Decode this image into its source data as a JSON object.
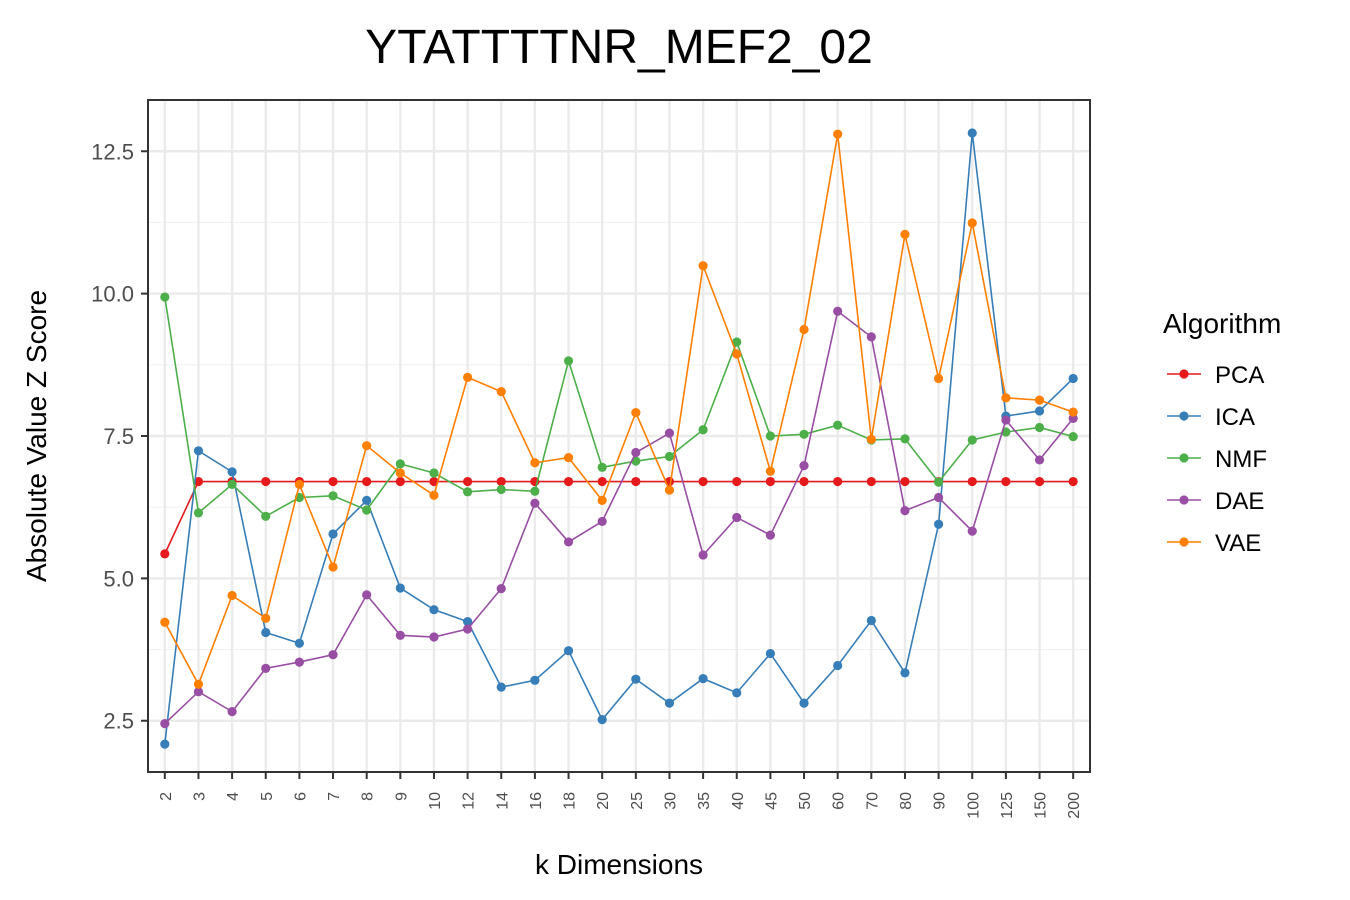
{
  "chart_data": {
    "type": "line",
    "title": "YTATTTTNR_MEF2_02",
    "xlabel": "k Dimensions",
    "ylabel": "Absolute Value Z Score",
    "categories": [
      "2",
      "3",
      "4",
      "5",
      "6",
      "7",
      "8",
      "9",
      "10",
      "12",
      "14",
      "16",
      "18",
      "20",
      "25",
      "30",
      "35",
      "40",
      "45",
      "50",
      "60",
      "70",
      "80",
      "90",
      "100",
      "125",
      "150",
      "200"
    ],
    "ylim": [
      1.6,
      13.4
    ],
    "yticks": [
      2.5,
      5.0,
      7.5,
      10.0,
      12.5
    ],
    "ytick_labels": [
      "2.5",
      "5.0",
      "7.5",
      "10.0",
      "12.5"
    ],
    "grid": true,
    "legend": {
      "title": "Algorithm",
      "position": "right"
    },
    "series": [
      {
        "name": "PCA",
        "color": "#e41a1c",
        "values": [
          5.43,
          6.7,
          6.7,
          6.7,
          6.7,
          6.7,
          6.7,
          6.7,
          6.7,
          6.7,
          6.7,
          6.7,
          6.7,
          6.7,
          6.7,
          6.7,
          6.7,
          6.7,
          6.7,
          6.7,
          6.7,
          6.7,
          6.7,
          6.7,
          6.7,
          6.7,
          6.7,
          6.7
        ]
      },
      {
        "name": "ICA",
        "color": "#377eb8",
        "values": [
          2.09,
          7.24,
          6.87,
          4.05,
          3.86,
          5.78,
          6.37,
          4.83,
          4.45,
          4.24,
          3.09,
          3.21,
          3.73,
          2.52,
          3.23,
          2.81,
          3.24,
          2.99,
          3.68,
          2.81,
          3.47,
          4.26,
          3.34,
          5.95,
          12.82,
          7.85,
          7.94,
          8.51
        ]
      },
      {
        "name": "NMF",
        "color": "#4daf4a",
        "values": [
          9.94,
          6.15,
          6.65,
          6.09,
          6.42,
          6.45,
          6.2,
          7.01,
          6.85,
          6.52,
          6.56,
          6.53,
          8.82,
          6.95,
          7.06,
          7.14,
          7.61,
          9.15,
          7.5,
          7.53,
          7.69,
          7.43,
          7.45,
          6.69,
          7.43,
          7.57,
          7.65,
          7.49
        ]
      },
      {
        "name": "DAE",
        "color": "#984ea3",
        "values": [
          2.45,
          3.01,
          2.66,
          3.42,
          3.53,
          3.66,
          4.71,
          4.0,
          3.97,
          4.11,
          4.82,
          6.32,
          5.64,
          6.0,
          7.21,
          7.55,
          5.41,
          6.07,
          5.76,
          6.98,
          9.69,
          9.24,
          6.19,
          6.42,
          5.83,
          7.78,
          7.08,
          7.81
        ]
      },
      {
        "name": "VAE",
        "color": "#ff7f00",
        "values": [
          4.23,
          3.14,
          4.7,
          4.3,
          6.65,
          5.2,
          7.33,
          6.85,
          6.46,
          8.53,
          8.28,
          7.03,
          7.12,
          6.37,
          7.91,
          6.55,
          10.49,
          8.94,
          6.88,
          9.37,
          12.8,
          7.44,
          11.04,
          8.51,
          11.24,
          8.17,
          8.13,
          7.92
        ]
      }
    ]
  }
}
